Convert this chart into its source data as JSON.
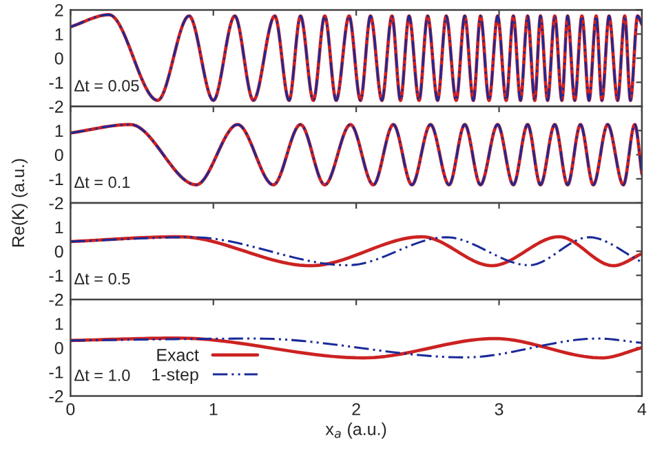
{
  "chart_data": [
    {
      "type": "line",
      "xlim": [
        0,
        4
      ],
      "xticks": [
        0,
        1,
        2,
        3,
        4
      ],
      "ylim": [
        -2,
        2
      ],
      "yticks": [
        -2,
        -1,
        0,
        1,
        2
      ],
      "tick_labels": "y",
      "annotations": [
        "Δt = 0.05"
      ],
      "series": [
        {
          "color": "#cc2222",
          "line_style": "solid",
          "x": [
            0,
            0.27,
            0.61,
            0.83,
            1.0,
            1.15,
            1.28,
            1.43,
            1.53,
            1.61,
            1.7,
            1.78,
            1.86,
            1.95,
            2.03,
            2.1,
            2.18,
            2.25,
            2.31,
            2.37,
            2.44,
            2.5,
            2.57,
            2.63,
            2.7,
            2.76,
            2.82,
            2.87,
            2.93,
            2.99,
            3.05,
            3.1,
            3.15,
            3.2,
            3.25,
            3.29,
            3.34,
            3.39,
            3.44,
            3.48,
            3.53,
            3.58,
            3.63,
            3.68,
            3.72,
            3.77,
            3.83,
            3.88,
            3.92,
            3.97,
            4.0
          ],
          "values": [
            1.3,
            1.8,
            -1.75,
            1.75,
            -1.75,
            1.75,
            -1.75,
            1.75,
            -1.75,
            1.75,
            -1.75,
            1.75,
            -1.75,
            1.75,
            -1.75,
            1.75,
            -1.75,
            1.75,
            -1.75,
            1.75,
            -1.75,
            1.75,
            -1.75,
            1.75,
            -1.75,
            1.75,
            -1.75,
            1.75,
            -1.75,
            1.75,
            -1.75,
            1.75,
            -1.75,
            1.75,
            -1.75,
            1.75,
            -1.75,
            1.75,
            -1.75,
            1.75,
            -1.75,
            1.75,
            -1.75,
            1.75,
            -1.75,
            1.75,
            -1.75,
            1.75,
            -1.75,
            1.75,
            1.4
          ]
        },
        {
          "color": "#1a2a99",
          "line_style": "dashed",
          "x": [
            0,
            0.27,
            0.61,
            0.83,
            1.0,
            1.15,
            1.28,
            1.43,
            1.53,
            1.61,
            1.7,
            1.78,
            1.86,
            1.95,
            2.03,
            2.1,
            2.18,
            2.25,
            2.31,
            2.37,
            2.44,
            2.5,
            2.57,
            2.63,
            2.7,
            2.76,
            2.82,
            2.87,
            2.93,
            2.99,
            3.05,
            3.1,
            3.15,
            3.2,
            3.25,
            3.29,
            3.34,
            3.39,
            3.44,
            3.48,
            3.53,
            3.58,
            3.63,
            3.68,
            3.72,
            3.77,
            3.83,
            3.88,
            3.92,
            3.97,
            4.0
          ],
          "values": [
            1.3,
            1.8,
            -1.75,
            1.75,
            -1.75,
            1.75,
            -1.75,
            1.75,
            -1.75,
            1.75,
            -1.75,
            1.75,
            -1.75,
            1.75,
            -1.75,
            1.75,
            -1.75,
            1.75,
            -1.75,
            1.75,
            -1.75,
            1.75,
            -1.75,
            1.75,
            -1.75,
            1.75,
            -1.75,
            1.75,
            -1.75,
            1.75,
            -1.75,
            1.75,
            -1.75,
            1.75,
            -1.75,
            1.75,
            -1.75,
            1.75,
            -1.75,
            1.75,
            -1.75,
            1.75,
            -1.75,
            1.75,
            -1.75,
            1.75,
            -1.75,
            1.75,
            -1.75,
            1.75,
            1.4
          ]
        }
      ]
    },
    {
      "type": "line",
      "xlim": [
        0,
        4
      ],
      "xticks": [
        0,
        1,
        2,
        3,
        4
      ],
      "ylim": [
        -2,
        2
      ],
      "yticks": [
        -2,
        -1,
        0,
        1
      ],
      "tick_labels": "y",
      "ylabel": "Re(K) (a.u.)",
      "annotations": [
        "Δt = 0.1"
      ],
      "series": [
        {
          "color": "#cc2222",
          "line_style": "solid",
          "x": [
            0,
            0.42,
            0.88,
            1.17,
            1.42,
            1.61,
            1.78,
            1.96,
            2.12,
            2.26,
            2.39,
            2.52,
            2.65,
            2.76,
            2.87,
            2.99,
            3.1,
            3.2,
            3.29,
            3.39,
            3.48,
            3.57,
            3.66,
            3.76,
            3.87,
            3.95,
            4.0
          ],
          "values": [
            0.9,
            1.25,
            -1.25,
            1.25,
            -1.25,
            1.25,
            -1.25,
            1.25,
            -1.25,
            1.25,
            -1.25,
            1.25,
            -1.25,
            1.25,
            -1.25,
            1.25,
            -1.25,
            1.25,
            -1.25,
            1.25,
            -1.25,
            1.25,
            -1.25,
            1.25,
            -1.25,
            1.25,
            -0.8
          ]
        },
        {
          "color": "#1a2a99",
          "line_style": "dashed",
          "x": [
            0,
            0.42,
            0.88,
            1.17,
            1.42,
            1.61,
            1.78,
            1.96,
            2.12,
            2.26,
            2.39,
            2.52,
            2.65,
            2.76,
            2.87,
            2.99,
            3.1,
            3.2,
            3.29,
            3.39,
            3.48,
            3.57,
            3.66,
            3.76,
            3.87,
            3.95,
            4.0
          ],
          "values": [
            0.9,
            1.25,
            -1.25,
            1.25,
            -1.25,
            1.25,
            -1.25,
            1.25,
            -1.25,
            1.25,
            -1.25,
            1.25,
            -1.25,
            1.25,
            -1.25,
            1.25,
            -1.25,
            1.25,
            -1.25,
            1.25,
            -1.25,
            1.25,
            -1.25,
            1.25,
            -1.25,
            1.25,
            -0.8
          ]
        }
      ]
    },
    {
      "type": "line",
      "xlim": [
        0,
        4
      ],
      "xticks": [
        0,
        1,
        2,
        3,
        4
      ],
      "ylim": [
        -2,
        2
      ],
      "yticks": [
        -2,
        -1,
        0,
        1
      ],
      "tick_labels": "y",
      "annotations": [
        "Δt = 0.5"
      ],
      "series": [
        {
          "color": "#cc2222",
          "line_style": "solid",
          "x": [
            0,
            0.76,
            1.68,
            2.46,
            2.95,
            3.42,
            3.8,
            4.0
          ],
          "values": [
            0.4,
            0.6,
            -0.6,
            0.6,
            -0.6,
            0.6,
            -0.6,
            -0.1
          ]
        },
        {
          "color": "#1a2a99",
          "line_style": "dashed",
          "x": [
            0,
            0.85,
            1.94,
            2.63,
            3.21,
            3.63,
            4.0
          ],
          "values": [
            0.4,
            0.58,
            -0.58,
            0.58,
            -0.58,
            0.58,
            -0.45
          ]
        }
      ]
    },
    {
      "type": "line",
      "xlim": [
        0,
        4
      ],
      "xticks": [
        0,
        1,
        2,
        3,
        4
      ],
      "ylim": [
        -2,
        2
      ],
      "yticks": [
        -2,
        -1,
        0,
        1
      ],
      "xlabel": "x$_{a}$ (a.u.)",
      "legend": "bottom left",
      "annotations": [
        "Δt = 1.0"
      ],
      "series": [
        {
          "name": "Exact",
          "color": "#cc2222",
          "line_style": "solid",
          "x": [
            0,
            0.75,
            2.05,
            2.97,
            3.72,
            4.0
          ],
          "values": [
            0.3,
            0.4,
            -0.42,
            0.38,
            -0.42,
            0.0
          ]
        },
        {
          "name": "1-step",
          "color": "#1a2a99",
          "line_style": "dashed",
          "x": [
            0,
            1.3,
            2.76,
            3.69,
            4.0
          ],
          "values": [
            0.3,
            0.38,
            -0.4,
            0.38,
            0.2
          ]
        }
      ]
    }
  ]
}
